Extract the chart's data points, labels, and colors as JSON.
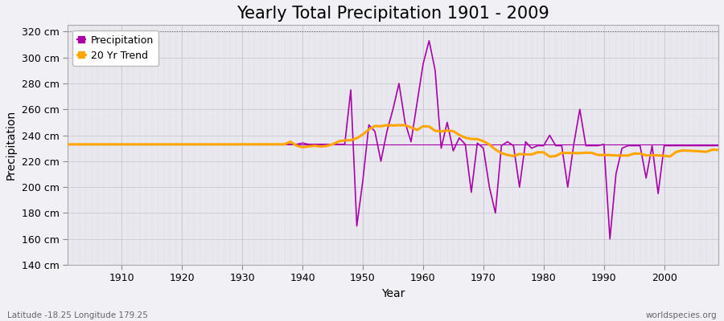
{
  "title": "Yearly Total Precipitation 1901 - 2009",
  "xlabel": "Year",
  "ylabel": "Precipitation",
  "subtitle_left": "Latitude -18.25 Longitude 179.25",
  "subtitle_right": "worldspecies.org",
  "ylim": [
    140,
    325
  ],
  "yticks": [
    140,
    160,
    180,
    200,
    220,
    240,
    260,
    280,
    300,
    320
  ],
  "ytick_labels": [
    "140 cm",
    "160 cm",
    "180 cm",
    "200 cm",
    "220 cm",
    "240 cm",
    "260 cm",
    "280 cm",
    "300 cm",
    "320 cm"
  ],
  "xlim": [
    1901,
    2009
  ],
  "xticks": [
    1910,
    1920,
    1930,
    1940,
    1950,
    1960,
    1970,
    1980,
    1990,
    2000
  ],
  "precip_color": "#aa00aa",
  "trend_color": "#FFA500",
  "background_color": "#f0f0f5",
  "plot_bg_color": "#e8e8ee",
  "grid_color_major": "#d0d0da",
  "grid_color_minor": "#d8d8e2",
  "title_fontsize": 15,
  "axis_label_fontsize": 10,
  "tick_fontsize": 9,
  "years": [
    1901,
    1902,
    1903,
    1904,
    1905,
    1906,
    1907,
    1908,
    1909,
    1910,
    1911,
    1912,
    1913,
    1914,
    1915,
    1916,
    1917,
    1918,
    1919,
    1920,
    1921,
    1922,
    1923,
    1924,
    1925,
    1926,
    1927,
    1928,
    1929,
    1930,
    1931,
    1932,
    1933,
    1934,
    1935,
    1936,
    1937,
    1938,
    1939,
    1940,
    1941,
    1942,
    1943,
    1944,
    1945,
    1946,
    1947,
    1948,
    1949,
    1950,
    1951,
    1952,
    1953,
    1954,
    1955,
    1956,
    1957,
    1958,
    1959,
    1960,
    1961,
    1962,
    1963,
    1964,
    1965,
    1966,
    1967,
    1968,
    1969,
    1970,
    1971,
    1972,
    1973,
    1974,
    1975,
    1976,
    1977,
    1978,
    1979,
    1980,
    1981,
    1982,
    1983,
    1984,
    1985,
    1986,
    1987,
    1988,
    1989,
    1990,
    1991,
    1992,
    1993,
    1994,
    1995,
    1996,
    1997,
    1998,
    1999,
    2000,
    2001,
    2002,
    2003,
    2004,
    2005,
    2006,
    2007,
    2008,
    2009
  ],
  "precip": [
    233,
    233,
    233,
    233,
    233,
    233,
    233,
    233,
    233,
    233,
    233,
    233,
    233,
    233,
    233,
    233,
    233,
    233,
    233,
    233,
    233,
    233,
    233,
    233,
    233,
    233,
    233,
    233,
    233,
    233,
    233,
    233,
    233,
    233,
    233,
    233,
    233,
    233,
    233,
    234,
    233,
    233,
    233,
    233,
    233,
    233,
    233,
    275,
    170,
    205,
    248,
    243,
    220,
    243,
    260,
    280,
    250,
    235,
    265,
    295,
    313,
    290,
    230,
    250,
    228,
    238,
    233,
    196,
    234,
    230,
    200,
    180,
    232,
    235,
    232,
    200,
    235,
    230,
    232,
    232,
    240,
    232,
    232,
    200,
    233,
    260,
    232,
    232,
    232,
    233,
    160,
    210,
    230,
    232,
    232,
    232,
    207,
    232,
    195,
    232,
    232,
    232,
    232,
    232,
    232,
    232,
    232,
    232,
    232
  ],
  "mean_value": 233
}
